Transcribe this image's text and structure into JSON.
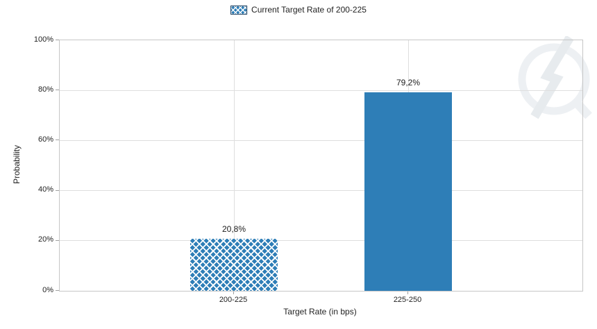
{
  "chart_data": {
    "type": "bar",
    "categories": [
      "200-225",
      "225-250"
    ],
    "values": [
      20.8,
      79.2
    ],
    "value_labels": [
      "20,8%",
      "79,2%"
    ],
    "bar_styles": [
      "crosshatch",
      "solid"
    ],
    "title": "",
    "xlabel": "Target Rate (in bps)",
    "ylabel": "Probability",
    "ylim": [
      0,
      100
    ],
    "yticks": [
      0,
      20,
      40,
      60,
      80,
      100
    ],
    "ytick_labels": [
      "0%",
      "20%",
      "40%",
      "60%",
      "80%",
      "100%"
    ],
    "grid": true,
    "legend_position": "top-center",
    "legend": [
      {
        "label": "Current Target Rate of 200-225",
        "swatch": "crosshatch-blue"
      }
    ],
    "colors": {
      "bar": "#2e7eb7",
      "pattern_line": "#ffffff",
      "grid": "#dedede",
      "axis_border": "#c6c6c6",
      "tick": "#9f9f9f",
      "text": "#222222",
      "watermark": "#e9edf0"
    },
    "watermark": "q-lightning-logo"
  }
}
